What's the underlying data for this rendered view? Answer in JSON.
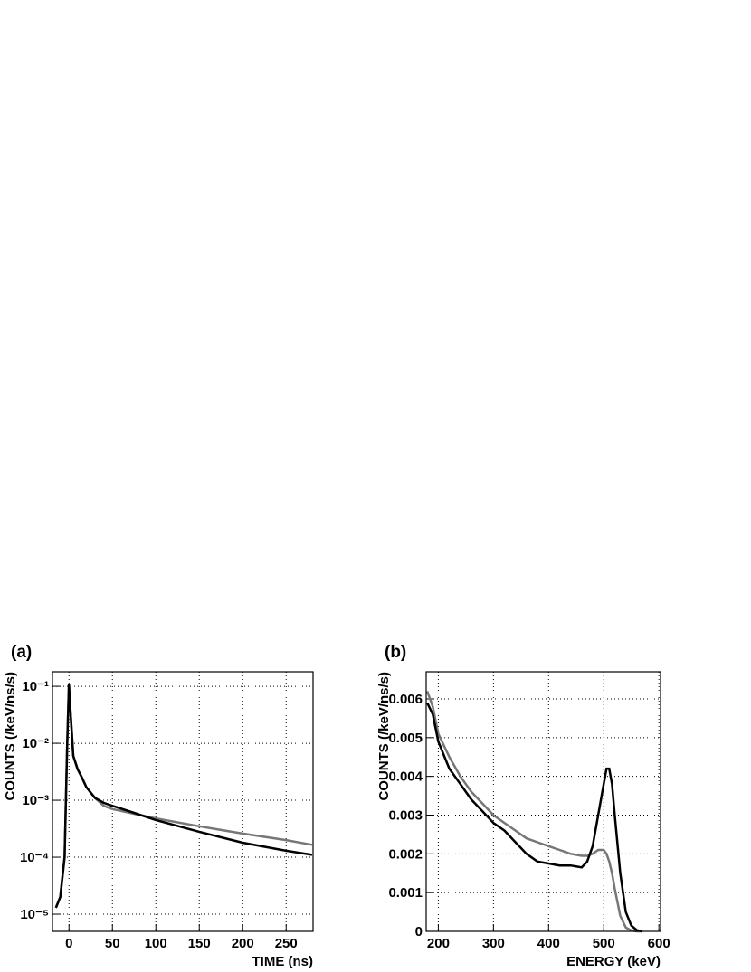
{
  "chart_data": [
    {
      "type": "line",
      "label": "(a)",
      "xlabel": "TIME (ns)",
      "ylabel": "COUNTS (/keV/ns/s)",
      "log_y": true,
      "grid": true,
      "xlim": [
        -19,
        281
      ],
      "ylim": [
        5e-06,
        0.18
      ],
      "xticks": [
        0,
        50,
        100,
        150,
        200,
        250
      ],
      "yticks": [
        {
          "value": 1e-05,
          "label": "10⁻⁵"
        },
        {
          "value": 0.0001,
          "label": "10⁻⁴"
        },
        {
          "value": 0.001,
          "label": "10⁻³"
        },
        {
          "value": 0.01,
          "label": "10⁻²"
        },
        {
          "value": 0.1,
          "label": "10⁻¹"
        }
      ],
      "x": [
        -15,
        -10,
        -5,
        -2,
        0,
        2,
        5,
        10,
        15,
        20,
        30,
        40,
        50,
        75,
        100,
        150,
        200,
        250,
        280
      ],
      "series": [
        {
          "color": "#777777",
          "values": [
            1.3e-05,
            2e-05,
            0.0001,
            0.01,
            0.11,
            0.03,
            0.006,
            0.0035,
            0.0025,
            0.0017,
            0.0011,
            0.0008,
            0.0007,
            0.00058,
            0.00048,
            0.00035,
            0.00026,
            0.0002,
            0.000165
          ]
        },
        {
          "color": "#000000",
          "values": [
            1.3e-05,
            2e-05,
            0.0001,
            0.01,
            0.11,
            0.03,
            0.006,
            0.0035,
            0.0025,
            0.0017,
            0.0011,
            0.0009,
            0.0008,
            0.0006,
            0.00045,
            0.00028,
            0.00018,
            0.00013,
            0.00011
          ]
        }
      ]
    },
    {
      "type": "line",
      "label": "(b)",
      "xlabel": "ENERGY (keV)",
      "ylabel": "COUNTS (/keV/ns/s)",
      "log_y": false,
      "grid": true,
      "xlim": [
        178,
        603
      ],
      "ylim": [
        0,
        0.0067
      ],
      "xticks": [
        200,
        300,
        400,
        500,
        600
      ],
      "yticks": [
        0,
        0.001,
        0.002,
        0.003,
        0.004,
        0.005,
        0.006
      ],
      "x": [
        180,
        190,
        200,
        220,
        240,
        260,
        280,
        300,
        320,
        340,
        360,
        380,
        400,
        420,
        440,
        460,
        470,
        480,
        490,
        500,
        505,
        510,
        515,
        520,
        530,
        540,
        550,
        560,
        570
      ],
      "series": [
        {
          "color": "#777777",
          "values": [
            0.0062,
            0.0058,
            0.0051,
            0.0045,
            0.004,
            0.0036,
            0.0033,
            0.003,
            0.0028,
            0.0026,
            0.0024,
            0.0023,
            0.0022,
            0.0021,
            0.002,
            0.00195,
            0.00195,
            0.002,
            0.0021,
            0.0021,
            0.002,
            0.0018,
            0.0015,
            0.0011,
            0.0004,
            0.0001,
            2e-05,
            0,
            0
          ]
        },
        {
          "color": "#000000",
          "values": [
            0.0059,
            0.0056,
            0.0049,
            0.0042,
            0.0038,
            0.0034,
            0.0031,
            0.0028,
            0.0026,
            0.0023,
            0.002,
            0.0018,
            0.00175,
            0.0017,
            0.0017,
            0.00165,
            0.0018,
            0.0022,
            0.003,
            0.0038,
            0.0042,
            0.0042,
            0.0038,
            0.003,
            0.0015,
            0.0005,
            0.00015,
            3e-05,
            0
          ]
        }
      ]
    }
  ]
}
